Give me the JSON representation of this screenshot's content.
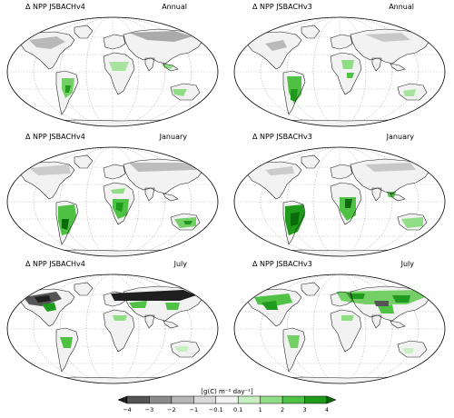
{
  "panels": [
    {
      "model": "Δ NPP JSBACHv4",
      "period": "Annual"
    },
    {
      "model": "Δ NPP JSBACHv3",
      "period": "Annual"
    },
    {
      "model": "Δ NPP JSBACHv4",
      "period": "January"
    },
    {
      "model": "Δ NPP JSBACHv3",
      "period": "January"
    },
    {
      "model": "Δ NPP JSBACHv4",
      "period": "July"
    },
    {
      "model": "Δ NPP JSBACHv3",
      "period": "July"
    }
  ],
  "colorbar": {
    "label": "[g(C) m⁻² day⁻¹]",
    "ticks": [
      "−4",
      "−3",
      "−2",
      "−1",
      "−0.1",
      "0.1",
      "1",
      "2",
      "3",
      "4"
    ],
    "colors": [
      "#1f1f1f",
      "#555555",
      "#8a8a8a",
      "#b5b5b5",
      "#d9d9d9",
      "#f2f2f2",
      "#c9f0c4",
      "#8fdd84",
      "#4fc245",
      "#1f9a1c",
      "#0b6b0b"
    ]
  }
}
